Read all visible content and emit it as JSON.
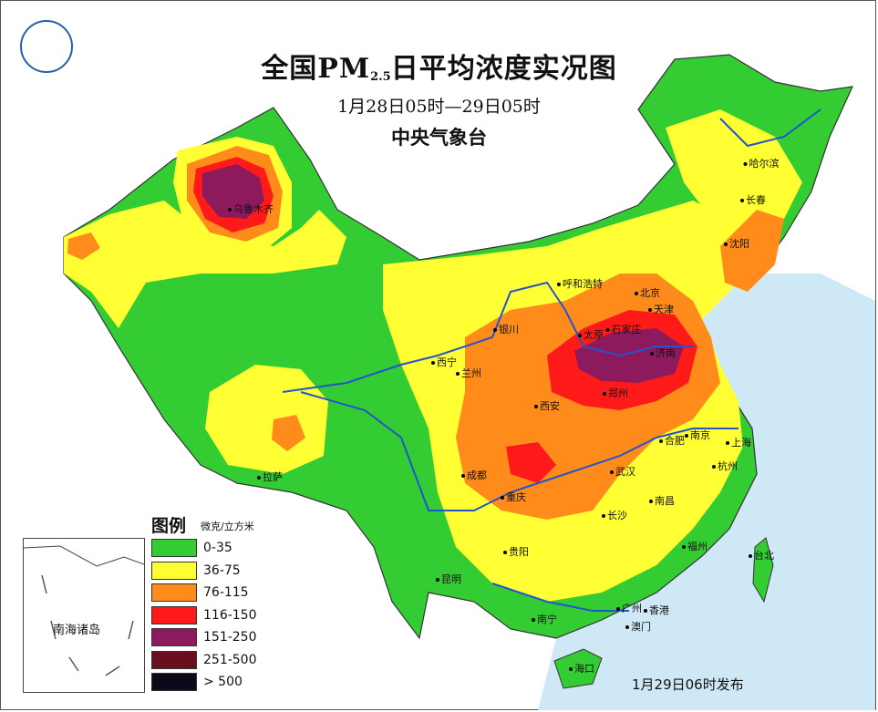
{
  "map": {
    "title_main": "全国PM",
    "title_sub": "2.5",
    "title_rest": "日平均浓度实况图",
    "date_range": "1月28日05时—29日05时",
    "agency": "中央气象台",
    "publish_time": "1月29日06时发布",
    "inset_label": "南海诸岛"
  },
  "legend": {
    "title": "图例",
    "unit": "微克/立方米",
    "items": [
      {
        "label": "0-35",
        "color": "#33cc33"
      },
      {
        "label": "36-75",
        "color": "#ffff33"
      },
      {
        "label": "76-115",
        "color": "#ff8c1a"
      },
      {
        "label": "116-150",
        "color": "#ff1a1a"
      },
      {
        "label": "151-250",
        "color": "#8c1a5c"
      },
      {
        "label": "251-500",
        "color": "#6b0f1f"
      },
      {
        "label": "> 500",
        "color": "#0a0a1a"
      }
    ]
  },
  "cities": [
    {
      "name": "乌鲁木齐"
    },
    {
      "name": "哈尔滨"
    },
    {
      "name": "长春"
    },
    {
      "name": "沈阳"
    },
    {
      "name": "呼和浩特"
    },
    {
      "name": "北京"
    },
    {
      "name": "天津"
    },
    {
      "name": "太原"
    },
    {
      "name": "石家庄"
    },
    {
      "name": "银川"
    },
    {
      "name": "济南"
    },
    {
      "name": "西宁"
    },
    {
      "name": "兰州"
    },
    {
      "name": "郑州"
    },
    {
      "name": "西安"
    },
    {
      "name": "合肥"
    },
    {
      "name": "南京"
    },
    {
      "name": "上海"
    },
    {
      "name": "成都"
    },
    {
      "name": "武汉"
    },
    {
      "name": "杭州"
    },
    {
      "name": "拉萨"
    },
    {
      "name": "重庆"
    },
    {
      "name": "南昌"
    },
    {
      "name": "长沙"
    },
    {
      "name": "贵阳"
    },
    {
      "name": "福州"
    },
    {
      "name": "台北"
    },
    {
      "name": "昆明"
    },
    {
      "name": "南宁"
    },
    {
      "name": "广州"
    },
    {
      "name": "香港"
    },
    {
      "name": "澳门"
    },
    {
      "name": "海口"
    }
  ],
  "colors": {
    "sea": "#cfe8f5",
    "border": "#555555",
    "river": "#2255cc"
  }
}
